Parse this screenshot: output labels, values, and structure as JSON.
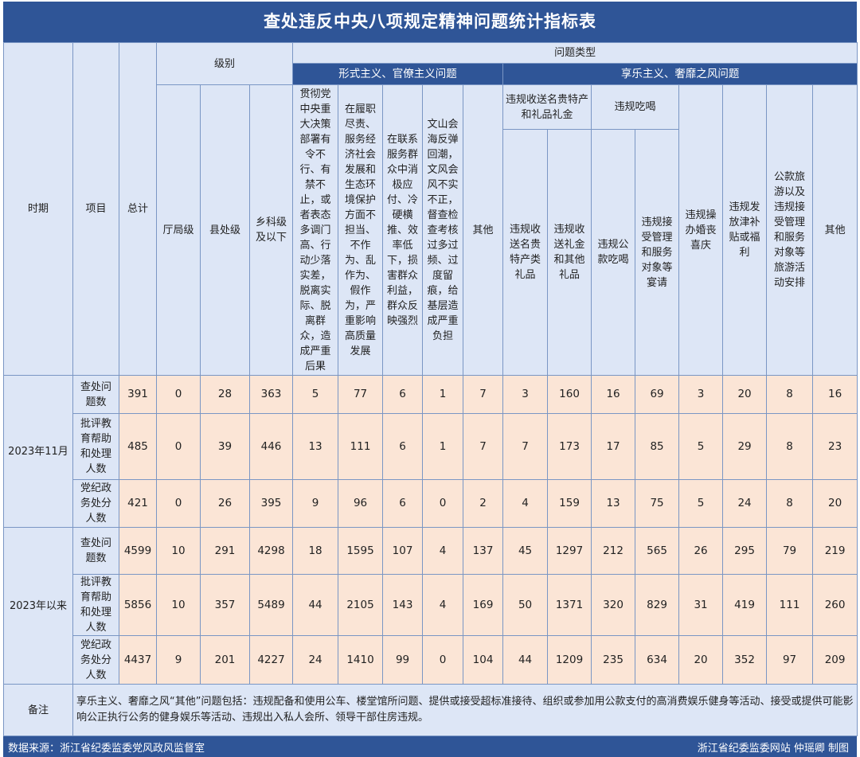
{
  "title": "查处违反中央八项规定精神问题统计指标表",
  "headers": {
    "period": "时期",
    "item": "项目",
    "total": "总计",
    "level": "级别",
    "level_cols": [
      "厅局级",
      "县处级",
      "乡科级及以下"
    ],
    "problem_type": "问题类型",
    "formalism": "形式主义、官僚主义问题",
    "hedonism": "享乐主义、奢靡之风问题",
    "formalism_cols": [
      "贯彻党中央重大决策部署有令不行、有禁不止，或者表态多调门高、行动少落实差，脱离实际、脱离群众，造成严重后果",
      "在履职尽责、服务经济社会发展和生态环境保护方面不担当、不作为、乱作为、假作为，严重影响高质量发展",
      "在联系服务群众中消极应付、冷硬横推、效率低下，损害群众利益，群众反映强烈",
      "文山会海反弹回潮，文风会风不实不正，督查检查考核过多过频、过度留痕，给基层造成严重负担",
      "其他"
    ],
    "gift_group": "违规收送名贵特产和礼品礼金",
    "gift_cols": [
      "违规收送名贵特产类礼品",
      "违规收送礼金和其他礼品"
    ],
    "dining_group": "违规吃喝",
    "dining_cols": [
      "违规公款吃喝",
      "违规接受管理和服务对象等宴请"
    ],
    "hedonism_cols": [
      "违规操办婚丧喜庆",
      "违规发放津补贴或福利",
      "公款旅游以及违规接受管理和服务对象等旅游活动安排",
      "其他"
    ]
  },
  "groups": [
    {
      "period": "2023年11月",
      "rows": [
        {
          "item": "查处问题数",
          "values": [
            "391",
            "0",
            "28",
            "363",
            "5",
            "77",
            "6",
            "1",
            "7",
            "3",
            "160",
            "16",
            "69",
            "3",
            "20",
            "8",
            "16"
          ]
        },
        {
          "item": "批评教育帮助和处理人数",
          "values": [
            "485",
            "0",
            "39",
            "446",
            "13",
            "111",
            "6",
            "1",
            "7",
            "7",
            "173",
            "17",
            "85",
            "5",
            "29",
            "8",
            "23"
          ]
        },
        {
          "item": "党纪政务处分人数",
          "values": [
            "421",
            "0",
            "26",
            "395",
            "9",
            "96",
            "6",
            "0",
            "2",
            "4",
            "159",
            "13",
            "75",
            "5",
            "24",
            "8",
            "20"
          ]
        }
      ]
    },
    {
      "period": "2023年以来",
      "rows": [
        {
          "item": "查处问题数",
          "values": [
            "4599",
            "10",
            "291",
            "4298",
            "18",
            "1595",
            "107",
            "4",
            "137",
            "45",
            "1297",
            "212",
            "565",
            "26",
            "295",
            "79",
            "219"
          ]
        },
        {
          "item": "批评教育帮助和处理人数",
          "values": [
            "5856",
            "10",
            "357",
            "5489",
            "44",
            "2105",
            "143",
            "4",
            "169",
            "50",
            "1371",
            "320",
            "829",
            "31",
            "419",
            "111",
            "260"
          ]
        },
        {
          "item": "党纪政务处分人数",
          "values": [
            "4437",
            "9",
            "201",
            "4227",
            "24",
            "1410",
            "99",
            "0",
            "104",
            "44",
            "1209",
            "235",
            "634",
            "20",
            "352",
            "97",
            "209"
          ]
        }
      ]
    }
  ],
  "note_label": "备注",
  "note_text": "享乐主义、奢靡之风“其他”问题包括：违规配备和使用公车、楼堂馆所问题、提供或接受超标准接待、组织或参加用公款支付的高消费娱乐健身等活动、接受或提供可能影响公正执行公务的健身娱乐等活动、违规出入私人会所、领导干部住房违规。",
  "footer": {
    "source": "数据来源：浙江省纪委监委党风政风监督室",
    "credit": "浙江省纪委监委网站  仲瑶卿    制图"
  }
}
